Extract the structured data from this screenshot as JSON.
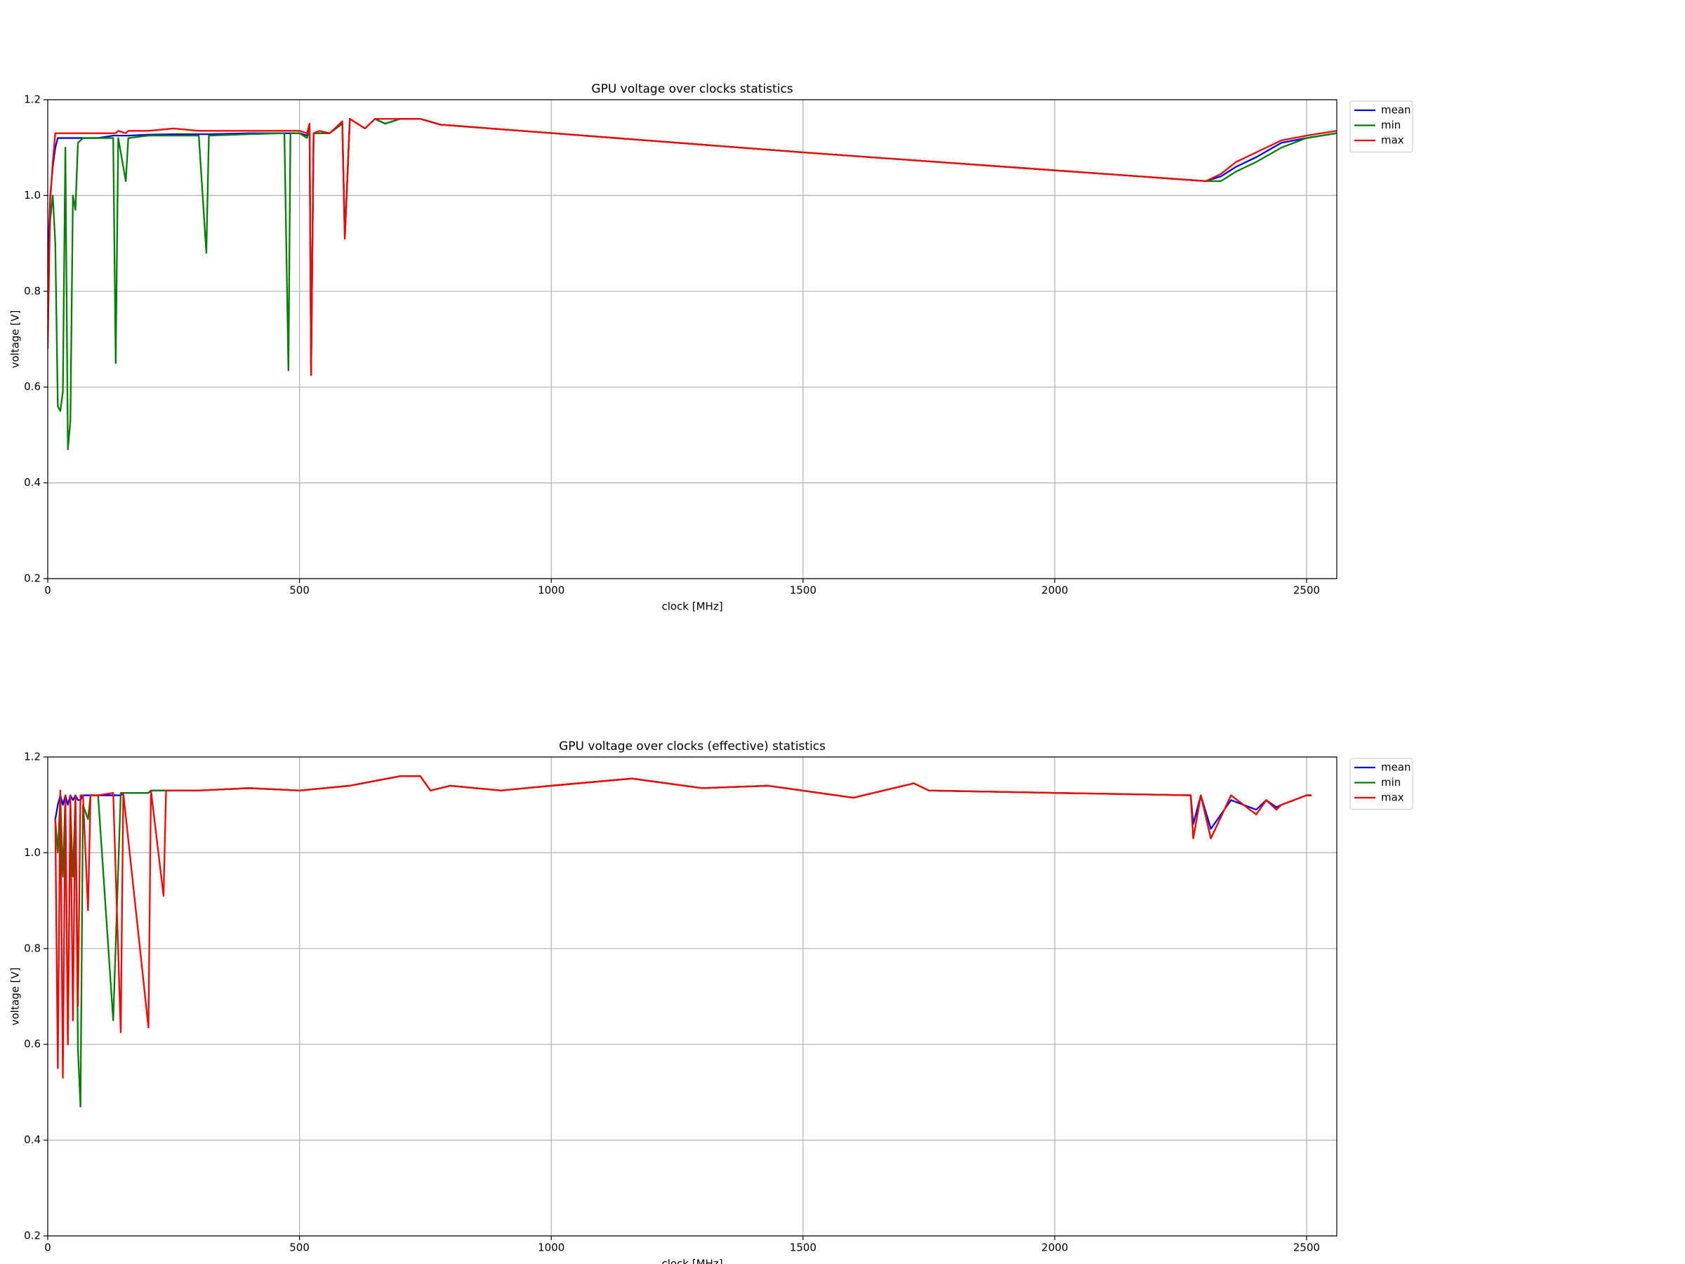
{
  "chart_data": [
    {
      "type": "line",
      "title": "GPU voltage over clocks statistics",
      "xlabel": "clock [MHz]",
      "ylabel": "voltage [V]",
      "x": [
        0,
        5,
        10,
        15,
        20,
        25,
        30,
        35,
        40,
        45,
        50,
        55,
        60,
        70,
        100,
        130,
        135,
        140,
        155,
        160,
        200,
        250,
        300,
        315,
        320,
        400,
        470,
        478,
        482,
        500,
        515,
        520,
        523,
        528,
        540,
        560,
        585,
        590,
        600,
        630,
        650,
        670,
        700,
        740,
        780,
        1500,
        2300,
        2330,
        2360,
        2400,
        2450,
        2500,
        2530,
        2560
      ],
      "series": [
        {
          "name": "mean",
          "color": "#0000ff",
          "values": [
            0.85,
            1.0,
            1.06,
            1.1,
            1.12,
            1.12,
            1.12,
            1.12,
            1.12,
            1.12,
            1.12,
            1.12,
            1.12,
            1.12,
            1.12,
            1.125,
            1.125,
            1.125,
            1.125,
            1.125,
            1.127,
            1.128,
            1.128,
            1.128,
            1.128,
            1.13,
            1.13,
            1.13,
            1.13,
            1.13,
            1.125,
            1.14,
            0.625,
            1.13,
            1.13,
            1.13,
            1.15,
            0.91,
            1.16,
            1.14,
            1.16,
            1.15,
            1.16,
            1.16,
            1.148,
            1.09,
            1.03,
            1.04,
            1.06,
            1.08,
            1.11,
            1.12,
            1.125,
            1.13
          ]
        },
        {
          "name": "min",
          "color": "#008000",
          "values": [
            0.8,
            0.95,
            1.0,
            0.9,
            0.56,
            0.55,
            0.59,
            1.1,
            0.47,
            0.53,
            1.0,
            0.97,
            1.11,
            1.12,
            1.12,
            1.12,
            0.65,
            1.12,
            1.03,
            1.12,
            1.125,
            1.125,
            1.125,
            0.88,
            1.125,
            1.128,
            1.13,
            0.635,
            1.13,
            1.13,
            1.12,
            1.14,
            0.625,
            1.13,
            1.13,
            1.13,
            1.15,
            0.91,
            1.16,
            1.14,
            1.16,
            1.15,
            1.16,
            1.16,
            1.148,
            1.09,
            1.03,
            1.03,
            1.05,
            1.07,
            1.1,
            1.12,
            1.125,
            1.13
          ]
        },
        {
          "name": "max",
          "color": "#ff0000",
          "values": [
            0.68,
            0.99,
            1.07,
            1.13,
            1.13,
            1.13,
            1.13,
            1.13,
            1.13,
            1.13,
            1.13,
            1.13,
            1.13,
            1.13,
            1.13,
            1.13,
            1.13,
            1.135,
            1.13,
            1.135,
            1.135,
            1.14,
            1.135,
            1.135,
            1.135,
            1.135,
            1.135,
            1.135,
            1.135,
            1.135,
            1.13,
            1.15,
            0.625,
            1.13,
            1.135,
            1.13,
            1.155,
            0.91,
            1.16,
            1.14,
            1.16,
            1.16,
            1.16,
            1.16,
            1.148,
            1.09,
            1.03,
            1.045,
            1.07,
            1.09,
            1.115,
            1.125,
            1.13,
            1.135
          ]
        }
      ],
      "xlim": [
        0,
        2560
      ],
      "ylim": [
        0.2,
        1.2
      ],
      "xticks": [
        0,
        500,
        1000,
        1500,
        2000,
        2500
      ],
      "yticks": [
        0.2,
        0.4,
        0.6,
        0.8,
        {
          "value": 1,
          "label": "1.0"
        },
        1.2
      ],
      "grid": true,
      "legend": "outside"
    },
    {
      "type": "line",
      "title": "GPU voltage over clocks (effective) statistics",
      "xlabel": "clock [MHz]",
      "ylabel": "voltage [V]",
      "x": [
        15,
        20,
        25,
        30,
        35,
        40,
        45,
        50,
        55,
        60,
        65,
        70,
        80,
        85,
        100,
        130,
        145,
        150,
        200,
        205,
        230,
        235,
        300,
        400,
        500,
        600,
        700,
        740,
        760,
        800,
        900,
        1000,
        1160,
        1300,
        1430,
        1600,
        1720,
        1750,
        2000,
        2270,
        2275,
        2290,
        2310,
        2350,
        2400,
        2420,
        2440,
        2450,
        2500,
        2510
      ],
      "series": [
        {
          "name": "mean",
          "color": "#0000ff",
          "values": [
            1.07,
            1.1,
            1.12,
            1.1,
            1.12,
            1.1,
            1.12,
            1.11,
            1.12,
            1.11,
            1.11,
            1.12,
            1.12,
            1.12,
            1.12,
            1.12,
            1.12,
            1.125,
            1.125,
            1.13,
            1.13,
            1.13,
            1.13,
            1.135,
            1.13,
            1.14,
            1.16,
            1.16,
            1.13,
            1.14,
            1.13,
            1.14,
            1.155,
            1.135,
            1.14,
            1.115,
            1.145,
            1.13,
            1.125,
            1.12,
            1.06,
            1.12,
            1.05,
            1.11,
            1.09,
            1.11,
            1.095,
            1.1,
            1.12,
            1.12
          ]
        },
        {
          "name": "min",
          "color": "#008000",
          "values": [
            1.07,
            1.0,
            1.12,
            0.95,
            1.12,
            0.6,
            1.1,
            0.95,
            1.12,
            0.59,
            0.47,
            1.1,
            1.07,
            1.12,
            1.12,
            0.65,
            1.125,
            1.125,
            1.125,
            1.13,
            1.13,
            1.13,
            1.13,
            1.135,
            1.13,
            1.14,
            1.16,
            1.16,
            1.13,
            1.14,
            1.13,
            1.14,
            1.155,
            1.135,
            1.14,
            1.115,
            1.145,
            1.13,
            1.125,
            1.12,
            1.03,
            1.12,
            1.03,
            1.12,
            1.08,
            1.11,
            1.09,
            1.1,
            1.12,
            1.12
          ]
        },
        {
          "name": "max",
          "color": "#ff0000",
          "values": [
            1.07,
            0.55,
            1.13,
            0.53,
            1.12,
            0.6,
            1.12,
            0.65,
            1.12,
            0.68,
            1.12,
            1.12,
            0.88,
            1.12,
            1.12,
            1.125,
            0.625,
            1.125,
            0.635,
            1.13,
            0.91,
            1.13,
            1.13,
            1.135,
            1.13,
            1.14,
            1.16,
            1.16,
            1.13,
            1.14,
            1.13,
            1.14,
            1.155,
            1.135,
            1.14,
            1.115,
            1.145,
            1.13,
            1.125,
            1.12,
            1.03,
            1.12,
            1.03,
            1.12,
            1.08,
            1.11,
            1.09,
            1.1,
            1.12,
            1.12
          ]
        }
      ],
      "xlim": [
        0,
        2560
      ],
      "ylim": [
        0.2,
        1.2
      ],
      "xticks": [
        0,
        500,
        1000,
        1500,
        2000,
        2500
      ],
      "yticks": [
        0.2,
        0.4,
        0.6,
        0.8,
        {
          "value": 1,
          "label": "1.0"
        },
        1.2
      ],
      "grid": true,
      "legend": "outside"
    }
  ]
}
